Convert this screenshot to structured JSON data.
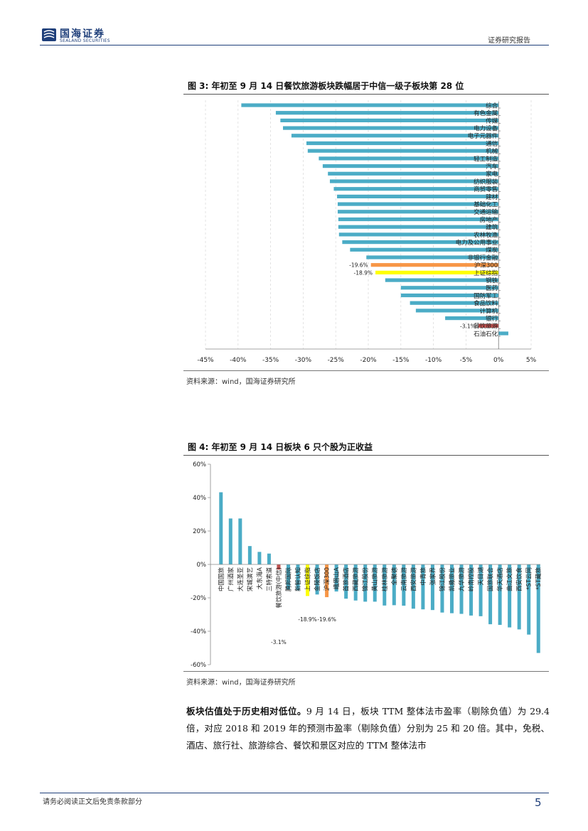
{
  "header": {
    "logo_cn": "国海证券",
    "logo_en": "SEALAND SECURITIES",
    "right_text": "证券研究报告"
  },
  "figure3": {
    "title": "图 3: 年初至 9 月 14 日餐饮旅游板块跌幅居于中信一级子板块第 28 位",
    "source": "资料来源：wind，国海证券研究所"
  },
  "figure4": {
    "title": "图 4: 年初至 9 月 14 日板块 6 只个股为正收益",
    "source": "资料来源：wind，国海证券研究所"
  },
  "paragraph": {
    "bold": "板块估值处于历史相对低位。",
    "rest": "9 月 14 日，板块 TTM 整体法市盈率（剔除负值）为 29.4 倍，对应 2018 和 2019 年的预测市盈率（剔除负值）分别为 25 和 20 倍。其中，免税、酒店、旅行社、旅游综合、餐饮和景区对应的 TTM 整体法市"
  },
  "footer": {
    "disclaimer": "请务必阅读正文后免责条款部分",
    "page_number": "5"
  },
  "colors": {
    "bar": "#4bacc6",
    "hs300": "#f79646",
    "sz": "#ffff00",
    "sector": "#c0504d",
    "brand": "#1f3f7a"
  },
  "chart_data": [
    {
      "type": "bar",
      "orientation": "horizontal",
      "categories": [
        "综合",
        "有色金属",
        "传媒",
        "电力设备",
        "电子元器件",
        "通信",
        "机械",
        "轻工制造",
        "汽车",
        "家电",
        "纺织服装",
        "商贸零售",
        "建材",
        "基础化工",
        "交通运输",
        "房地产",
        "建筑",
        "农林牧渔",
        "电力及公用事业",
        "煤炭",
        "非银行金融",
        "沪深300",
        "上证综指",
        "钢铁",
        "医药",
        "国防军工",
        "食品饮料",
        "计算机",
        "银行",
        "餐饮旅游",
        "石油石化"
      ],
      "values": [
        -39.5,
        -34.2,
        -33.5,
        -33.1,
        -31.8,
        -29.5,
        -29.3,
        -27.6,
        -27.0,
        -26.2,
        -25.9,
        -25.3,
        -24.8,
        -24.7,
        -24.7,
        -24.6,
        -24.6,
        -24.5,
        -24.0,
        -22.8,
        -20.3,
        -19.6,
        -18.9,
        -17.4,
        -15.0,
        -15.0,
        -13.6,
        -12.7,
        -8.2,
        -3.1,
        1.5
      ],
      "highlights": {
        "沪深300": "hs300",
        "上证综指": "sz",
        "餐饮旅游": "sector"
      },
      "data_labels": {
        "沪深300": "-19.6%",
        "上证综指": "-18.9%",
        "餐饮旅游": "-3.1%"
      },
      "xlim": [
        -45,
        5
      ],
      "x_ticks": [
        "-45%",
        "-40%",
        "-35%",
        "-30%",
        "-25%",
        "-20%",
        "-15%",
        "-10%",
        "-5%",
        "0%",
        "5%"
      ],
      "grid": true
    },
    {
      "type": "bar",
      "orientation": "vertical",
      "categories": [
        "中国国旅",
        "广州酒家",
        "大连圣亚",
        "宋城演艺",
        "大东海A",
        "三特索道",
        "餐饮旅游(中信)",
        "腾邦国际",
        "新智认知",
        "上证综指",
        "金陵饭店",
        "沪深300",
        "峨眉山A",
        "首旅酒店",
        "西藏旅游",
        "锦江股份",
        "黄山旅游",
        "桂林旅游",
        "全聚德",
        "云南旅游",
        "西安旅游",
        "中青旅",
        "张家界",
        "锦江股份",
        "凯撒旅业",
        "九华旅游",
        "岭南控股",
        "天目湖",
        "国旅联合",
        "华天酒店",
        "曲江文旅",
        "西安饮食",
        "*ST云网",
        "*ST藏旅"
      ],
      "values": [
        43.2,
        27.5,
        27.5,
        11.0,
        7.5,
        6.5,
        -3.1,
        -15.0,
        -15.5,
        -18.9,
        -18.0,
        -19.6,
        -16.2,
        -20.5,
        -21.6,
        -22.3,
        -22.3,
        -24.6,
        -24.4,
        -24.7,
        -26.5,
        -26.9,
        -27.3,
        -28.8,
        -29.2,
        -29.6,
        -30.6,
        -31.0,
        -35.8,
        -36.2,
        -37.7,
        -38.9,
        -42.0,
        -53.0
      ],
      "highlights": {
        "餐饮旅游(中信)": "sector",
        "上证综指": "sz",
        "沪深300": "hs300"
      },
      "data_labels": {
        "餐饮旅游(中信)": "-3.1%",
        "上证综指": "-18.9%",
        "沪深300": "-19.6%"
      },
      "ylim": [
        -60,
        60
      ],
      "y_ticks": [
        "60%",
        "40%",
        "20%",
        "0%",
        "-20%",
        "-40%",
        "-60%"
      ],
      "grid": false
    }
  ]
}
